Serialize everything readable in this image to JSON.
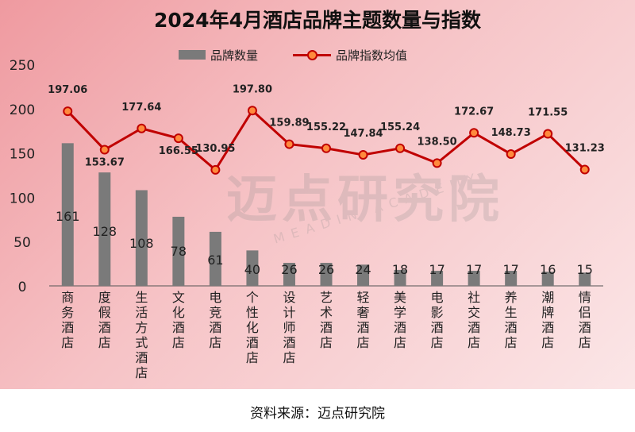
{
  "title": "2024年4月酒店品牌主题数量与指数",
  "source": "资料来源：迈点研究院",
  "watermark": {
    "main": "迈点研究院",
    "sub": "MEADIN ACADEMY"
  },
  "legend": {
    "bar": "品牌数量",
    "line": "品牌指数均值"
  },
  "colors": {
    "bar": "#7a7a7a",
    "line": "#c00000",
    "marker_fill": "#ff8a3d"
  },
  "chart_data": {
    "type": "bar",
    "categories": [
      "商务酒店",
      "度假酒店",
      "生活方式酒店",
      "文化酒店",
      "电竞酒店",
      "个性化酒店",
      "设计师酒店",
      "艺术酒店",
      "轻奢酒店",
      "美学酒店",
      "电影酒店",
      "社交酒店",
      "养生酒店",
      "潮牌酒店",
      "情侣酒店"
    ],
    "series": [
      {
        "name": "品牌数量",
        "type": "bar",
        "values": [
          161,
          128,
          108,
          78,
          61,
          40,
          26,
          26,
          24,
          18,
          17,
          17,
          17,
          16,
          15
        ]
      },
      {
        "name": "品牌指数均值",
        "type": "line",
        "values": [
          197.06,
          153.67,
          177.64,
          166.55,
          130.95,
          197.8,
          159.89,
          155.22,
          147.84,
          155.24,
          138.5,
          172.67,
          148.73,
          171.55,
          131.23
        ]
      }
    ],
    "y_ticks": [
      "0",
      "50",
      "100",
      "150",
      "200",
      "250"
    ],
    "ylim": [
      0,
      250
    ],
    "bar_labels": [
      "161",
      "128",
      "108",
      "78",
      "61",
      "40",
      "26",
      "26",
      "24",
      "18",
      "17",
      "17",
      "17",
      "16",
      "15"
    ],
    "line_labels": [
      "197.06",
      "153.67",
      "177.64",
      "166.55",
      "130.95",
      "197.80",
      "159.89",
      "155.22",
      "147.84",
      "155.24",
      "138.50",
      "172.67",
      "148.73",
      "171.55",
      "131.23"
    ],
    "legend_position": "top"
  }
}
